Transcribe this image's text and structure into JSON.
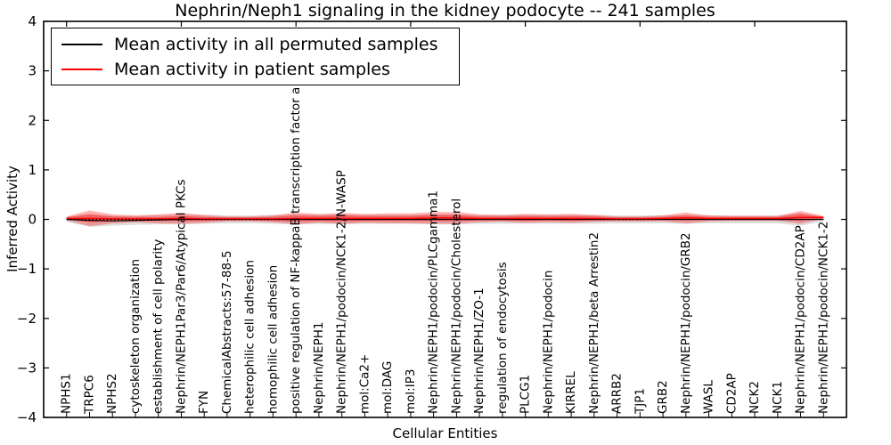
{
  "title": "Nephrin/Neph1 signaling in the kidney podocyte -- 241 samples",
  "axes": {
    "ylabel": "Inferred Activity",
    "xlabel": "Cellular Entities",
    "ytick_labels": [
      "4",
      "3",
      "2",
      "1",
      "0",
      "−1",
      "−2",
      "−3",
      "−4"
    ]
  },
  "legend": [
    {
      "label": "Mean activity in all permuted samples",
      "color": "#000000"
    },
    {
      "label": "Mean activity in patient samples",
      "color": "#ff0000"
    }
  ],
  "chart_data": {
    "type": "line",
    "title": "Nephrin/Neph1 signaling in the kidney podocyte -- 241 samples",
    "xlabel": "Cellular Entities",
    "ylabel": "Inferred Activity",
    "ylim": [
      -4,
      4
    ],
    "yticks": [
      4,
      3,
      2,
      1,
      0,
      -1,
      -2,
      -3,
      -4
    ],
    "grid": false,
    "legend_position": "upper left",
    "zero_line_style": "dotted",
    "categories": [
      "NPHS1",
      "TRPC6",
      "NPHS2",
      "cytoskeleton organization",
      "establishment of cell polarity",
      "Nephrin/NEPH1Par3/Par6/Atypical PKCs",
      "FYN",
      "ChemicalAbstracts:57-88-5",
      "heterophilic cell adhesion",
      "homophilic cell adhesion",
      "positive regulation of NF-kappaB transcription factor a",
      "Nephrin/NEPH1",
      "Nephrin/NEPH1/podocin/NCK1-2/N-WASP",
      "mol:Ca2+",
      "mol:DAG",
      "mol:IP3",
      "Nephrin/NEPH1/podocin/PLCgamma1",
      "Nephrin/NEPH1/podocin/Cholesterol",
      "Nephrin/NEPH1/ZO-1",
      "regulation of endocytosis",
      "PLCG1",
      "Nephrin/NEPH1/podocin",
      "KIRREL",
      "Nephrin/NEPH1/beta Arrestin2",
      "ARRB2",
      "TJP1",
      "GRB2",
      "Nephrin/NEPH1/podocin/GRB2",
      "WASL",
      "CD2AP",
      "NCK2",
      "NCK1",
      "Nephrin/NEPH1/podocin/CD2AP",
      "Nephrin/NEPH1/podocin/NCK1-2"
    ],
    "series": [
      {
        "name": "Mean activity in all permuted samples",
        "color": "#000000",
        "band_color": "rgba(0,0,0,0.13)",
        "values": [
          0,
          -0.02,
          -0.03,
          -0.02,
          -0.01,
          0,
          0,
          0,
          0,
          0,
          0,
          0,
          0,
          0,
          0,
          0,
          0,
          0,
          0,
          0,
          0,
          0,
          0,
          0,
          0,
          0,
          0,
          0,
          0,
          0,
          0,
          0,
          0,
          0
        ],
        "spread": [
          0.05,
          0.13,
          0.1,
          0.09,
          0.09,
          0.1,
          0.09,
          0.08,
          0.08,
          0.09,
          0.1,
          0.09,
          0.1,
          0.09,
          0.09,
          0.09,
          0.1,
          0.1,
          0.09,
          0.09,
          0.09,
          0.09,
          0.09,
          0.09,
          0.08,
          0.08,
          0.08,
          0.09,
          0.08,
          0.08,
          0.08,
          0.08,
          0.13,
          0.04
        ]
      },
      {
        "name": "Mean activity in patient samples",
        "color": "#ff0000",
        "band_color_outer": "rgba(255,0,0,0.30)",
        "band_color_inner": "rgba(255,0,0,0.38)",
        "values": [
          0.02,
          0.02,
          0.01,
          0.01,
          0.01,
          0.02,
          0.01,
          0.01,
          0.01,
          0.01,
          0.02,
          0.02,
          0.02,
          0.02,
          0.02,
          0.02,
          0.03,
          0.03,
          0.02,
          0.02,
          0.02,
          0.02,
          0.02,
          0.02,
          0.01,
          0.01,
          0.02,
          0.03,
          0.02,
          0.02,
          0.02,
          0.02,
          0.04,
          0.04
        ],
        "spread_outer": [
          0.04,
          0.16,
          0.09,
          0.07,
          0.09,
          0.11,
          0.08,
          0.05,
          0.05,
          0.07,
          0.12,
          0.09,
          0.11,
          0.09,
          0.1,
          0.1,
          0.12,
          0.12,
          0.08,
          0.07,
          0.09,
          0.08,
          0.09,
          0.07,
          0.05,
          0.05,
          0.06,
          0.11,
          0.06,
          0.05,
          0.05,
          0.05,
          0.13,
          0.03
        ],
        "spread_inner": [
          0.02,
          0.08,
          0.05,
          0.04,
          0.04,
          0.05,
          0.04,
          0.03,
          0.03,
          0.04,
          0.06,
          0.05,
          0.06,
          0.05,
          0.05,
          0.05,
          0.06,
          0.06,
          0.04,
          0.04,
          0.05,
          0.04,
          0.05,
          0.04,
          0.03,
          0.03,
          0.03,
          0.05,
          0.03,
          0.03,
          0.03,
          0.03,
          0.07,
          0.02
        ]
      }
    ],
    "top_tick_every": 5
  }
}
